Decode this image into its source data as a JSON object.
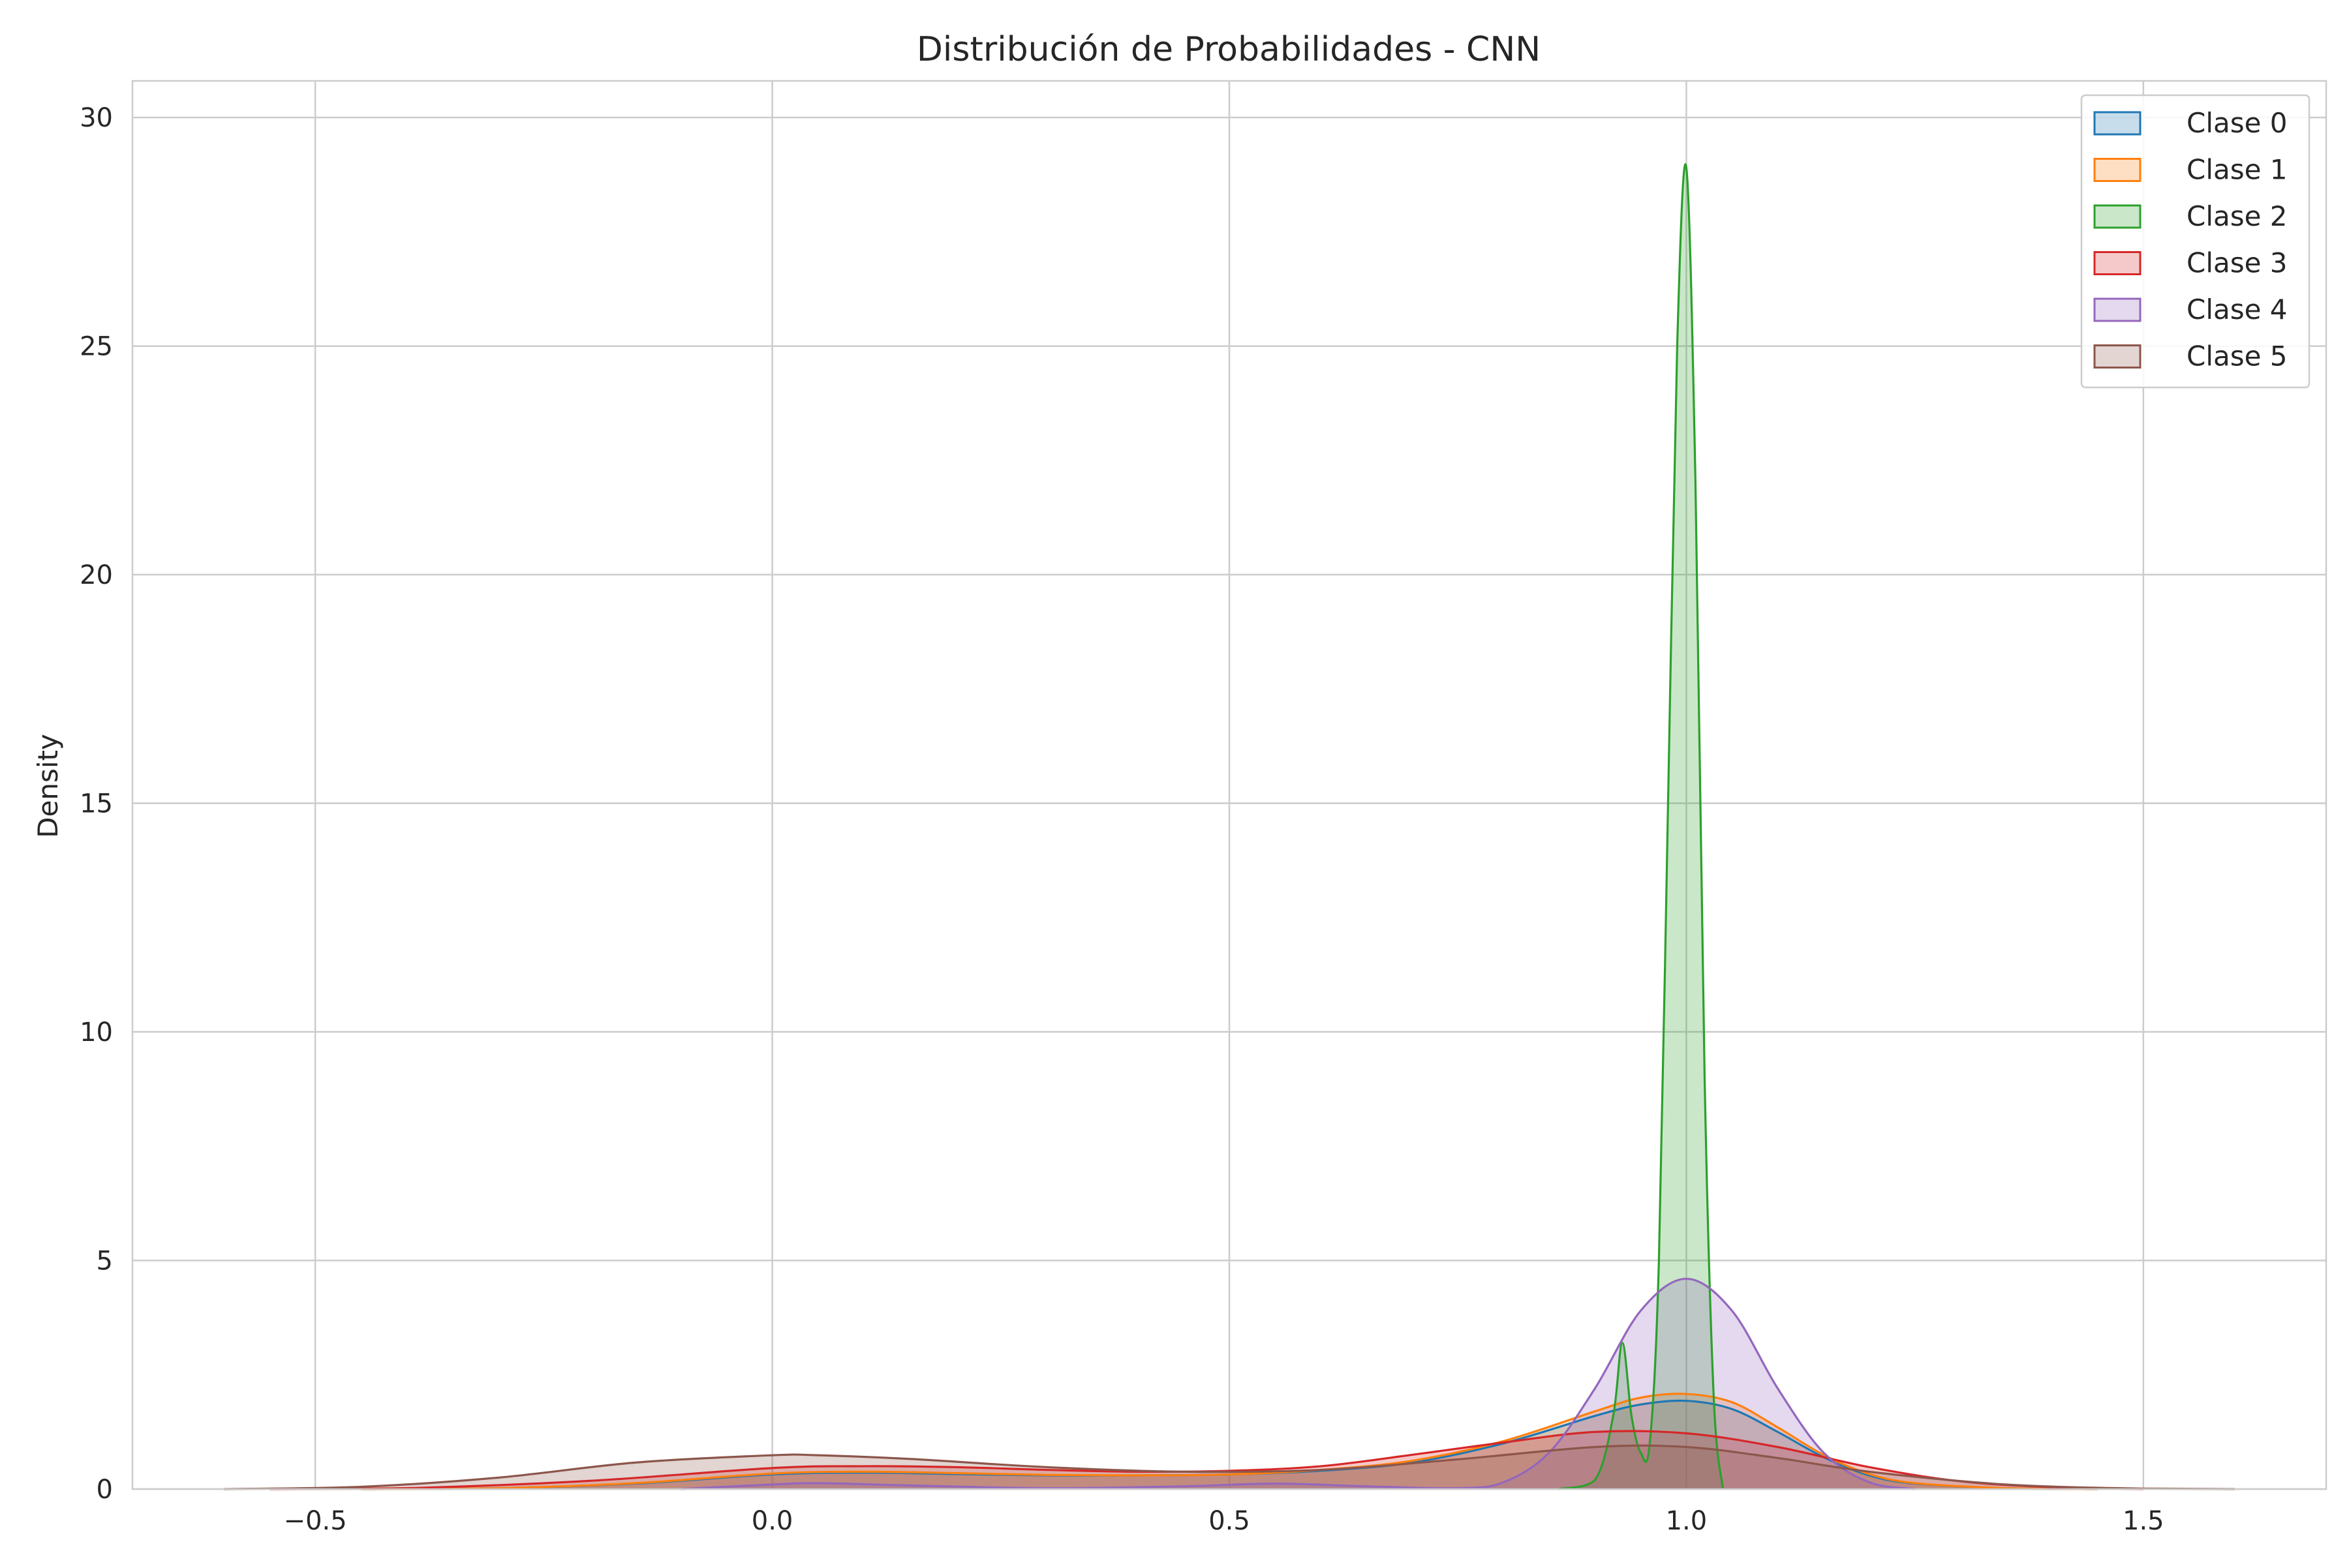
{
  "chart_data": {
    "type": "area",
    "title": "Distribución de Probabilidades - CNN",
    "xlabel": "",
    "ylabel": "Density",
    "xlim": [
      -0.7,
      1.7
    ],
    "ylim": [
      0,
      30.8
    ],
    "grid": true,
    "legend_position": "top-right",
    "x_ticks": [
      {
        "value": -0.5,
        "label": "−0.5"
      },
      {
        "value": 0.0,
        "label": "0.0"
      },
      {
        "value": 0.5,
        "label": "0.5"
      },
      {
        "value": 1.0,
        "label": "1.0"
      },
      {
        "value": 1.5,
        "label": "1.5"
      }
    ],
    "y_ticks": [
      {
        "value": 0,
        "label": "0"
      },
      {
        "value": 5,
        "label": "5"
      },
      {
        "value": 10,
        "label": "10"
      },
      {
        "value": 15,
        "label": "15"
      },
      {
        "value": 20,
        "label": "20"
      },
      {
        "value": 25,
        "label": "25"
      },
      {
        "value": 30,
        "label": "30"
      }
    ],
    "series": [
      {
        "name": "Clase 0",
        "color": "#1f77b4",
        "x": [
          -0.45,
          -0.3,
          -0.15,
          0.0,
          0.1,
          0.2,
          0.3,
          0.4,
          0.5,
          0.6,
          0.7,
          0.8,
          0.9,
          0.95,
          1.0,
          1.05,
          1.1,
          1.15,
          1.2,
          1.25,
          1.35,
          1.45
        ],
        "y": [
          0.0,
          0.02,
          0.12,
          0.32,
          0.36,
          0.33,
          0.3,
          0.3,
          0.32,
          0.4,
          0.58,
          1.0,
          1.6,
          1.85,
          1.93,
          1.75,
          1.25,
          0.7,
          0.3,
          0.12,
          0.02,
          0.0
        ]
      },
      {
        "name": "Clase 1",
        "color": "#ff7f0e",
        "x": [
          -0.45,
          -0.3,
          -0.15,
          0.0,
          0.1,
          0.2,
          0.3,
          0.4,
          0.5,
          0.6,
          0.7,
          0.8,
          0.9,
          0.95,
          1.0,
          1.05,
          1.1,
          1.15,
          1.2,
          1.25,
          1.35,
          1.45
        ],
        "y": [
          0.0,
          0.02,
          0.13,
          0.34,
          0.38,
          0.35,
          0.31,
          0.3,
          0.32,
          0.42,
          0.62,
          1.05,
          1.7,
          2.0,
          2.08,
          1.9,
          1.35,
          0.75,
          0.33,
          0.13,
          0.02,
          0.0
        ]
      },
      {
        "name": "Clase 2",
        "color": "#2ca02c",
        "x": [
          0.86,
          0.9,
          0.92,
          0.93,
          0.94,
          0.95,
          0.96,
          0.97,
          0.98,
          0.99,
          1.0,
          1.01,
          1.02,
          1.03,
          1.04
        ],
        "y": [
          0.0,
          0.2,
          1.6,
          3.2,
          1.6,
          0.8,
          1.0,
          5.0,
          15.0,
          25.0,
          28.9,
          22.0,
          9.0,
          2.0,
          0.0
        ]
      },
      {
        "name": "Clase 3",
        "color": "#d62728",
        "x": [
          -0.55,
          -0.4,
          -0.2,
          0.0,
          0.1,
          0.2,
          0.3,
          0.4,
          0.5,
          0.6,
          0.7,
          0.8,
          0.9,
          1.0,
          1.1,
          1.2,
          1.3,
          1.4,
          1.5
        ],
        "y": [
          0.0,
          0.02,
          0.18,
          0.46,
          0.5,
          0.48,
          0.42,
          0.38,
          0.4,
          0.5,
          0.75,
          1.02,
          1.25,
          1.22,
          0.92,
          0.48,
          0.17,
          0.04,
          0.0
        ]
      },
      {
        "name": "Clase 4",
        "color": "#9467bd",
        "x": [
          -0.1,
          0.0,
          0.05,
          0.15,
          0.3,
          0.45,
          0.55,
          0.65,
          0.75,
          0.8,
          0.85,
          0.9,
          0.95,
          1.0,
          1.05,
          1.1,
          1.15,
          1.2,
          1.25
        ],
        "y": [
          0.0,
          0.1,
          0.13,
          0.08,
          0.02,
          0.06,
          0.12,
          0.06,
          0.02,
          0.15,
          0.8,
          2.2,
          3.9,
          4.6,
          3.9,
          2.2,
          0.8,
          0.15,
          0.0
        ]
      },
      {
        "name": "Clase 5",
        "color": "#8c564b",
        "x": [
          -0.6,
          -0.45,
          -0.3,
          -0.15,
          0.0,
          0.05,
          0.15,
          0.3,
          0.45,
          0.6,
          0.75,
          0.9,
          1.0,
          1.1,
          1.2,
          1.35,
          1.5,
          1.6
        ],
        "y": [
          0.0,
          0.05,
          0.25,
          0.58,
          0.74,
          0.74,
          0.66,
          0.48,
          0.38,
          0.42,
          0.65,
          0.92,
          0.92,
          0.68,
          0.38,
          0.1,
          0.01,
          0.0
        ]
      }
    ]
  }
}
